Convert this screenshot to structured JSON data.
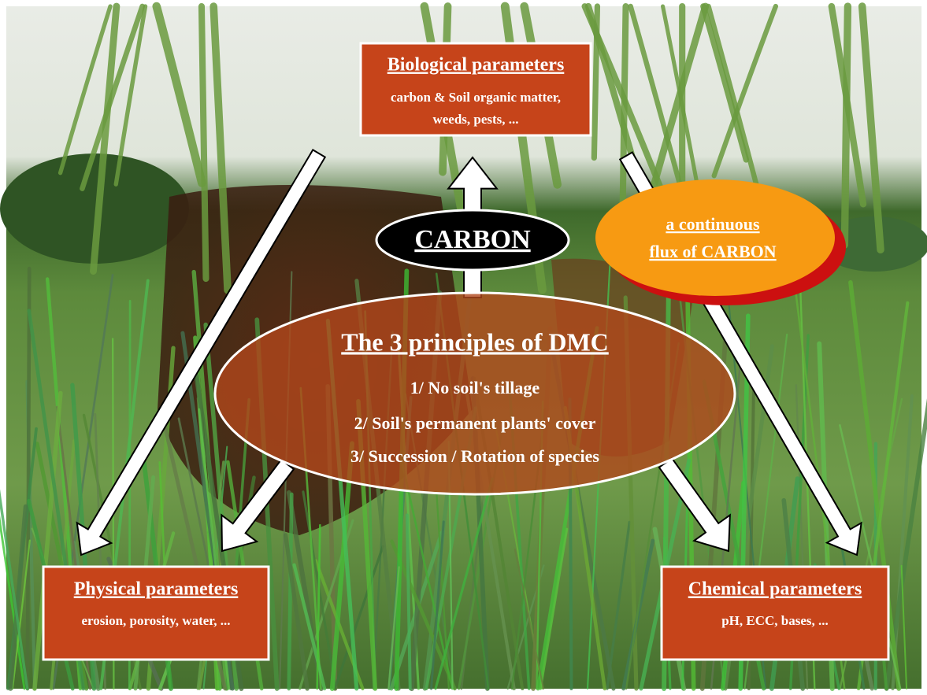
{
  "carbon": "CARBON",
  "flux": {
    "lines": [
      "a continuous",
      "flux of CARBON"
    ]
  },
  "principles": {
    "title": "The 3 principles of DMC",
    "items": [
      "1/ No soil's tillage",
      "2/ Soil's permanent plants' cover",
      "3/ Succession / Rotation of species"
    ]
  },
  "biological": {
    "title": "Biological parameters",
    "lines": [
      "carbon & Soil organic matter,",
      "weeds, pests, ..."
    ]
  },
  "physical": {
    "title": "Physical parameters",
    "lines": [
      "erosion, porosity, water, ..."
    ]
  },
  "chemical": {
    "title": "Chemical parameters",
    "lines": [
      "pH, ECC, bases, ..."
    ]
  }
}
